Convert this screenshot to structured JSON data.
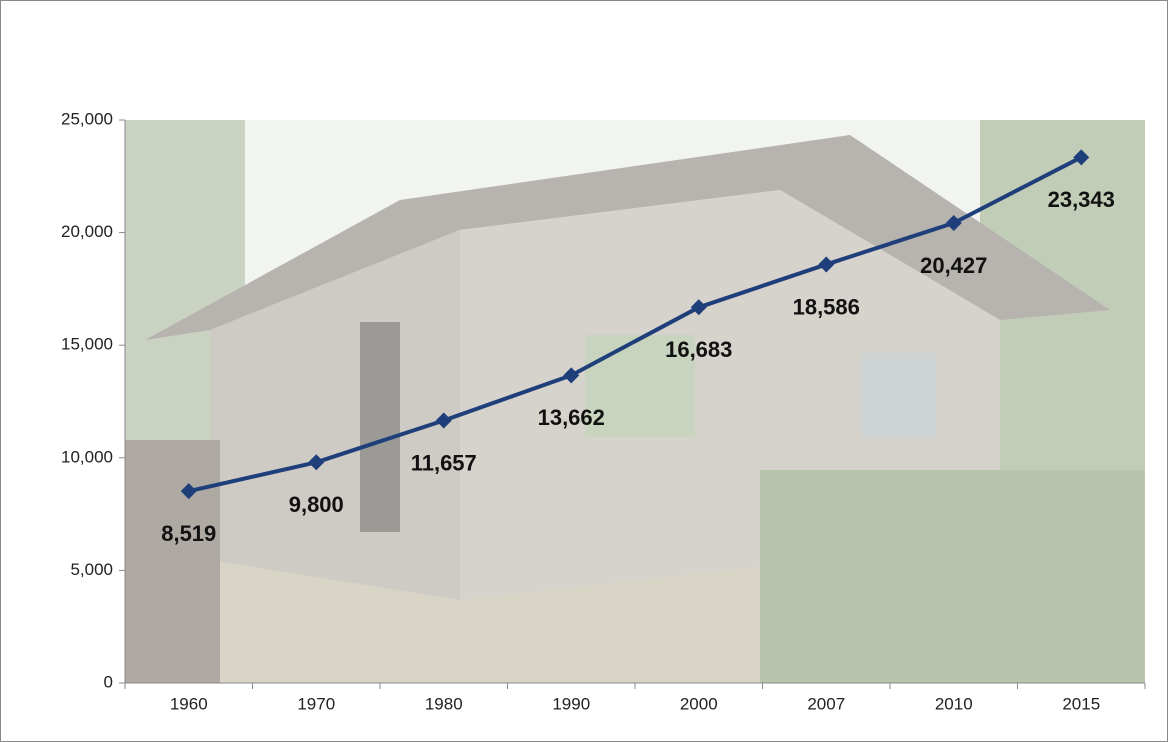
{
  "chart_data": {
    "type": "line",
    "categories": [
      "1960",
      "1970",
      "1980",
      "1990",
      "2000",
      "2007",
      "2010",
      "2015"
    ],
    "series": [
      {
        "color": "#1f3f7b",
        "values": [
          8519,
          9800,
          11657,
          13662,
          16683,
          18586,
          20427,
          23343
        ],
        "value_labels": [
          "8,519",
          "9,800",
          "11,657",
          "13,662",
          "16,683",
          "18,586",
          "20,427",
          "23,343"
        ]
      }
    ],
    "ylim": [
      0,
      25000
    ],
    "yticks": [
      0,
      {
        "value": 5000,
        "label": "5,000"
      },
      {
        "value": 10000,
        "label": "10,000"
      },
      {
        "value": 15000,
        "label": "15,000"
      },
      {
        "value": 20000,
        "label": "20,000"
      },
      {
        "value": 25000,
        "label": "25,000"
      }
    ]
  }
}
